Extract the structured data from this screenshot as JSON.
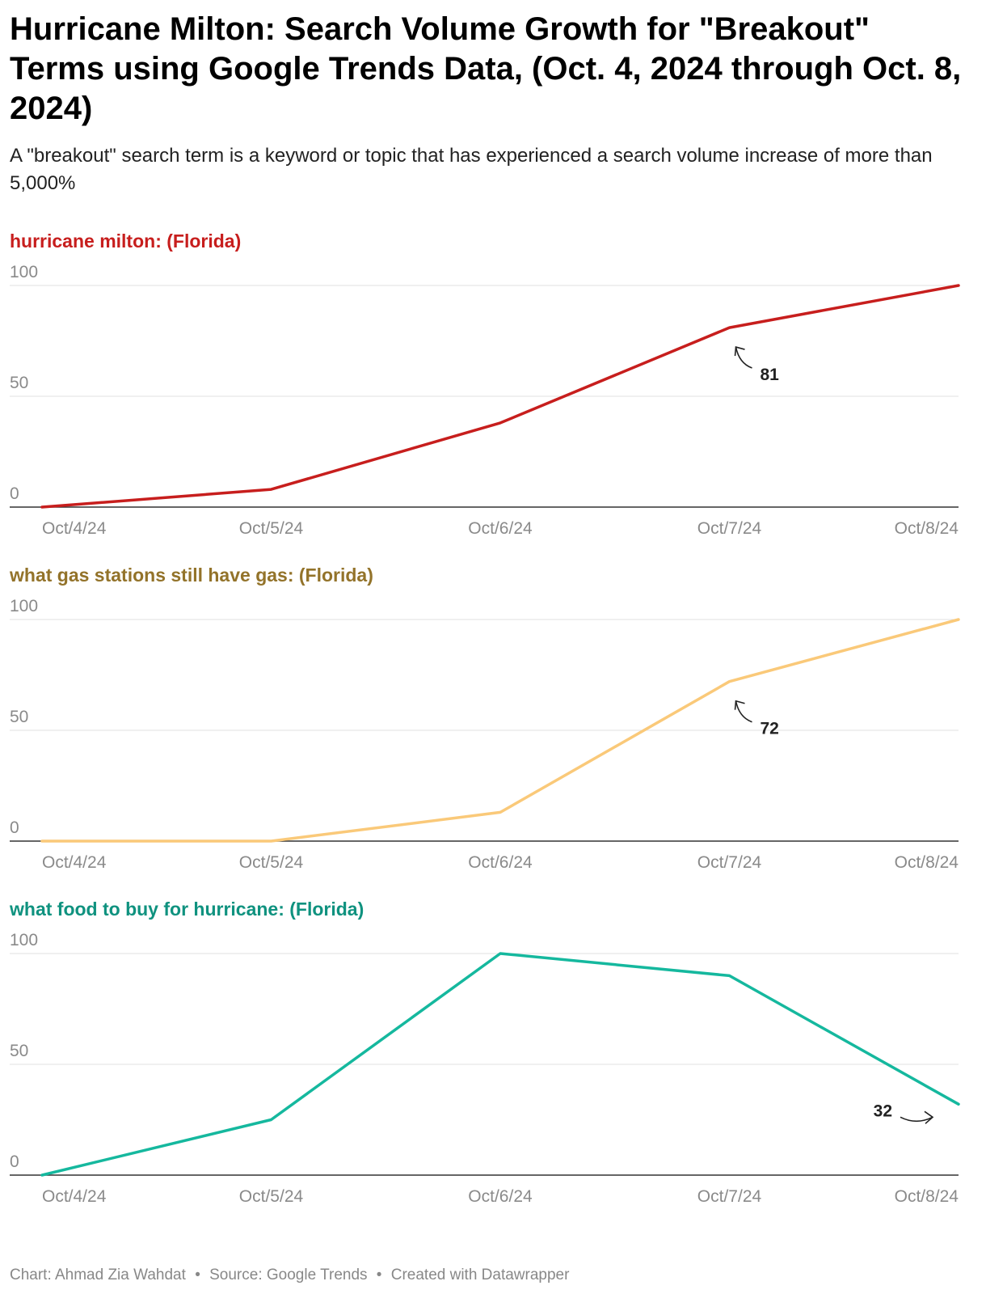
{
  "header": {
    "title": "Hurricane Milton: Search Volume Growth for \"Breakout\" Terms using Google Trends Data, (Oct. 4, 2024 through Oct. 8, 2024)",
    "subtitle": "A \"breakout\" search term is a keyword or topic that has experienced a search volume increase of more than 5,000%"
  },
  "footer": {
    "chart_credit": "Chart: Ahmad Zia Wahdat",
    "source": "Source: Google Trends",
    "tool": "Created with Datawrapper",
    "separator": "•"
  },
  "chart_data": [
    {
      "type": "line",
      "title": "hurricane milton: (Florida)",
      "color": "#c71e1d",
      "x": [
        "2024-10-04",
        "2024-10-05",
        "2024-10-06",
        "2024-10-07",
        "2024-10-08"
      ],
      "x_ticks": [
        "Oct/4/24",
        "Oct/5/24",
        "Oct/6/24",
        "Oct/7/24",
        "Oct/8/24"
      ],
      "y_ticks": [
        "0",
        "50",
        "100"
      ],
      "ylim": [
        0,
        100
      ],
      "grid": true,
      "series": [
        {
          "values": [
            0,
            8,
            38,
            81,
            100
          ]
        }
      ],
      "annotation": {
        "text": "81",
        "x": "2024-10-07",
        "y": 81
      }
    },
    {
      "type": "line",
      "title": "what gas stations still have gas: (Florida)",
      "color": "#fac979",
      "title_color": "#93732a",
      "x": [
        "2024-10-04",
        "2024-10-05",
        "2024-10-06",
        "2024-10-07",
        "2024-10-08"
      ],
      "x_ticks": [
        "Oct/4/24",
        "Oct/5/24",
        "Oct/6/24",
        "Oct/7/24",
        "Oct/8/24"
      ],
      "y_ticks": [
        "0",
        "50",
        "100"
      ],
      "ylim": [
        0,
        100
      ],
      "grid": true,
      "series": [
        {
          "values": [
            0,
            0,
            13,
            72,
            100
          ]
        }
      ],
      "annotation": {
        "text": "72",
        "x": "2024-10-07",
        "y": 72
      }
    },
    {
      "type": "line",
      "title": "what food to buy for hurricane: (Florida)",
      "color": "#15b89e",
      "title_color": "#0f927f",
      "x": [
        "2024-10-04",
        "2024-10-05",
        "2024-10-06",
        "2024-10-07",
        "2024-10-08"
      ],
      "x_ticks": [
        "Oct/4/24",
        "Oct/5/24",
        "Oct/6/24",
        "Oct/7/24",
        "Oct/8/24"
      ],
      "y_ticks": [
        "0",
        "50",
        "100"
      ],
      "ylim": [
        0,
        100
      ],
      "grid": true,
      "series": [
        {
          "values": [
            0,
            25,
            100,
            90,
            32
          ]
        }
      ],
      "annotation": {
        "text": "32",
        "x": "2024-10-08",
        "y": 32
      }
    }
  ]
}
